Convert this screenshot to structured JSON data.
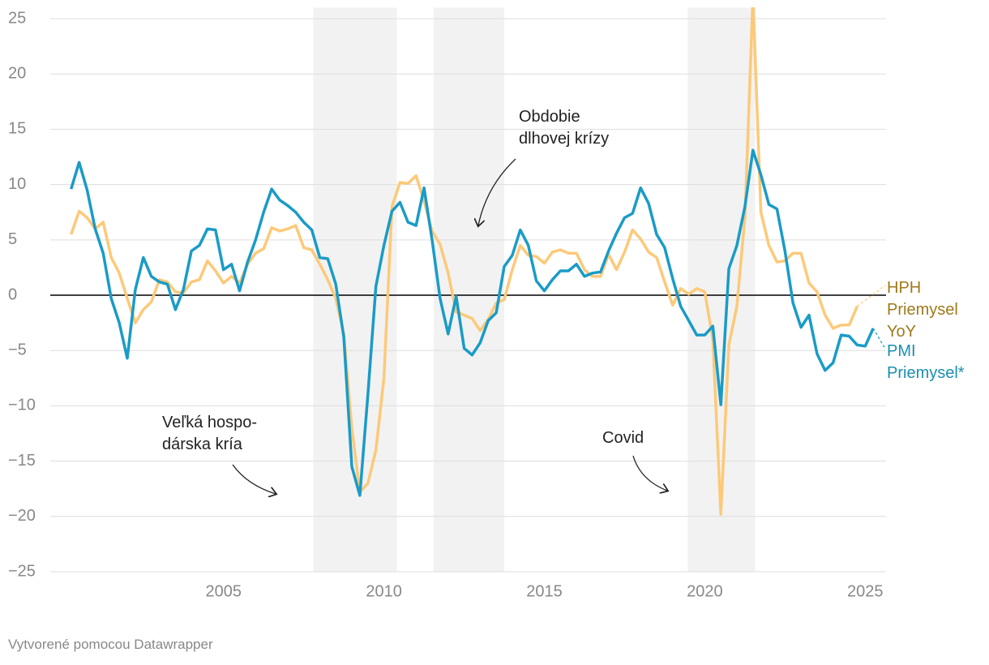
{
  "chart_data": {
    "type": "line",
    "x": [
      2000.25,
      2000.5,
      2000.75,
      2001,
      2001.25,
      2001.5,
      2001.75,
      2002,
      2002.25,
      2002.5,
      2002.75,
      2003,
      2003.25,
      2003.5,
      2003.75,
      2004,
      2004.25,
      2004.5,
      2004.75,
      2005,
      2005.25,
      2005.5,
      2005.75,
      2006,
      2006.25,
      2006.5,
      2006.75,
      2007,
      2007.25,
      2007.5,
      2007.75,
      2008,
      2008.25,
      2008.5,
      2008.75,
      2009,
      2009.25,
      2009.5,
      2009.75,
      2010,
      2010.25,
      2010.5,
      2010.75,
      2011,
      2011.25,
      2011.5,
      2011.75,
      2012,
      2012.25,
      2012.5,
      2012.75,
      2013,
      2013.25,
      2013.5,
      2013.75,
      2014,
      2014.25,
      2014.5,
      2014.75,
      2015,
      2015.25,
      2015.5,
      2015.75,
      2016,
      2016.25,
      2016.5,
      2016.75,
      2017,
      2017.25,
      2017.5,
      2017.75,
      2018,
      2018.25,
      2018.5,
      2018.75,
      2019,
      2019.25,
      2019.5,
      2019.75,
      2020,
      2020.25,
      2020.5,
      2020.75,
      2021,
      2021.25,
      2021.5,
      2021.75,
      2022,
      2022.25,
      2022.5,
      2022.75,
      2023,
      2023.25,
      2023.5,
      2023.75,
      2024,
      2024.25,
      2024.5,
      2024.75,
      2025,
      2025.25
    ],
    "series": [
      {
        "name": "HPH Priemysel YoY",
        "color": "#fdc979",
        "label_color": "#a07a1a",
        "values": [
          5.5,
          7.6,
          7.0,
          6.0,
          6.6,
          3.4,
          2.0,
          -0.3,
          -2.5,
          -1.3,
          -0.6,
          1.4,
          1.2,
          0.3,
          0.2,
          1.2,
          1.4,
          3.1,
          2.2,
          1.1,
          1.7,
          1.1,
          2.8,
          3.8,
          4.2,
          6.1,
          5.8,
          6.0,
          6.3,
          4.3,
          4.1,
          2.8,
          1.4,
          -0.3,
          -3.5,
          -12.0,
          -17.8,
          -17.0,
          -14.0,
          -7.5,
          8.0,
          10.2,
          10.1,
          10.8,
          8.5,
          5.8,
          4.6,
          2.0,
          -1.5,
          -1.8,
          -2.1,
          -3.2,
          -2.2,
          -0.7,
          -0.4,
          2.3,
          4.5,
          3.6,
          3.5,
          2.9,
          3.9,
          4.1,
          3.8,
          3.8,
          2.3,
          1.7,
          1.7,
          3.7,
          2.3,
          3.9,
          5.9,
          5.1,
          3.9,
          3.4,
          1.2,
          -0.9,
          0.6,
          0.1,
          0.6,
          0.3,
          -4.0,
          -19.8,
          -4.5,
          -1.0,
          7.0,
          27.0,
          7.5,
          4.5,
          3.0,
          3.1,
          3.8,
          3.8,
          1.1,
          0.3,
          -1.8,
          -3.0,
          -2.7,
          -2.7,
          -1.0,
          null,
          null
        ]
      },
      {
        "name": "PMI Priemysel*",
        "color": "#1a9bc7",
        "label_color": "#1a8fb0",
        "values": [
          9.6,
          12.0,
          9.5,
          6.0,
          3.8,
          -0.3,
          -2.5,
          -5.7,
          0.5,
          3.4,
          1.7,
          1.2,
          1.0,
          -1.3,
          0.5,
          4.0,
          4.5,
          6.0,
          5.9,
          2.3,
          2.8,
          0.4,
          3.0,
          5.0,
          7.5,
          9.6,
          8.6,
          8.1,
          7.5,
          6.6,
          5.9,
          3.4,
          3.3,
          1.0,
          -3.8,
          -15.5,
          -18.1,
          -9.0,
          0.8,
          4.5,
          7.6,
          8.4,
          6.6,
          6.3,
          9.7,
          5.0,
          -0.3,
          -3.5,
          -0.1,
          -4.8,
          -5.4,
          -4.3,
          -2.3,
          -1.6,
          2.6,
          3.6,
          5.9,
          4.5,
          1.3,
          0.4,
          1.4,
          2.2,
          2.2,
          2.8,
          1.7,
          2.0,
          2.1,
          4.0,
          5.6,
          7.0,
          7.4,
          9.7,
          8.3,
          5.5,
          4.3,
          1.5,
          -1.0,
          -2.3,
          -3.6,
          -3.6,
          -2.8,
          -9.9,
          2.4,
          4.5,
          8.0,
          13.1,
          10.9,
          8.2,
          7.8,
          4.0,
          -0.7,
          -2.9,
          -1.8,
          -5.3,
          -6.8,
          -6.1,
          -3.6,
          -3.7,
          -4.5,
          -4.6,
          -3.0
        ]
      }
    ],
    "shaded_ranges": [
      [
        2007.8,
        2010.4
      ],
      [
        2011.55,
        2013.75
      ],
      [
        2019.47,
        2021.57
      ]
    ],
    "annotations": [
      {
        "lines": [
          "Obdobie",
          "dlhovej krízy"
        ]
      },
      {
        "lines": [
          "Veľká hospo-",
          "dárska kría"
        ]
      },
      {
        "lines": [
          "Covid"
        ]
      }
    ],
    "xlim": [
      1999.6,
      2025.65
    ],
    "xticks": [
      2005,
      2010,
      2015,
      2020,
      2025
    ],
    "ylim": [
      -25,
      26
    ],
    "yticks": [
      {
        "value": -25,
        "label": "−25"
      },
      {
        "value": -20,
        "label": "−20"
      },
      {
        "value": -15,
        "label": "−15"
      },
      {
        "value": -10,
        "label": "−10"
      },
      {
        "value": -5,
        "label": "−5"
      },
      0,
      5,
      10,
      15,
      20,
      25
    ],
    "grid": true,
    "footer": "Vytvorené pomocou Datawrapper"
  }
}
